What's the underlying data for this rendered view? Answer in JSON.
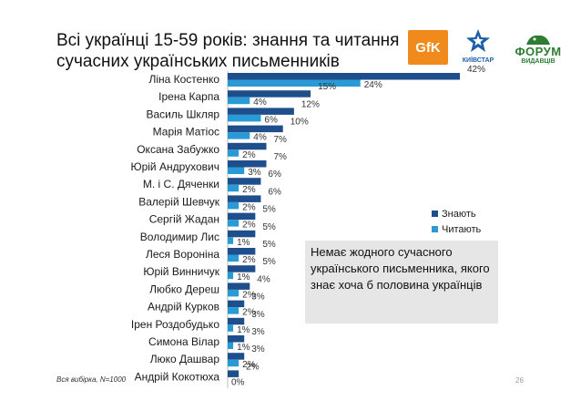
{
  "title": "Всі українці 15-59 років: знання та читання сучасних українських письменників",
  "logos": {
    "gfk": "GfK",
    "kyivstar": "КИЇВСТАР",
    "forum": "ФОРУМ",
    "forum_sub": "ВИДАВЦІВ"
  },
  "note": "Немає жодного сучасного українського письменника, якого знає хоча б половина українців",
  "sample": "Вся вибірка, N=1000",
  "page_number": "26",
  "chart_data": {
    "type": "bar",
    "orientation": "horizontal",
    "categories": [
      "Ліна Костенко",
      "Ірена Карпа",
      "Василь Шкляр",
      "Марія Матіос",
      "Оксана Забужко",
      "Юрій Андрухович",
      "М. і С. Дяченки",
      "Валерій Шевчук",
      "Сергій Жадан",
      "Володимир Лис",
      "Леся Воронiна",
      "Юрій Винничук",
      "Любко Дереш",
      "Андрій Курков",
      "Ірен Роздобудько",
      "Симона Вілар",
      "Люко Дашвар",
      "Андрій Кокотюха"
    ],
    "series": [
      {
        "name": "Знають",
        "color": "#1f4e8c",
        "values": [
          42,
          15,
          12,
          10,
          7,
          7,
          6,
          6,
          5,
          5,
          5,
          5,
          4,
          3,
          3,
          3,
          3,
          2
        ]
      },
      {
        "name": "Читають",
        "color": "#2a9ad6",
        "values": [
          24,
          4,
          6,
          4,
          2,
          3,
          2,
          2,
          2,
          1,
          2,
          1,
          2,
          2,
          1,
          1,
          2,
          0
        ]
      }
    ],
    "value_suffix": "%",
    "legend_position": "right",
    "xlim": [
      0,
      42
    ],
    "grid": false
  }
}
